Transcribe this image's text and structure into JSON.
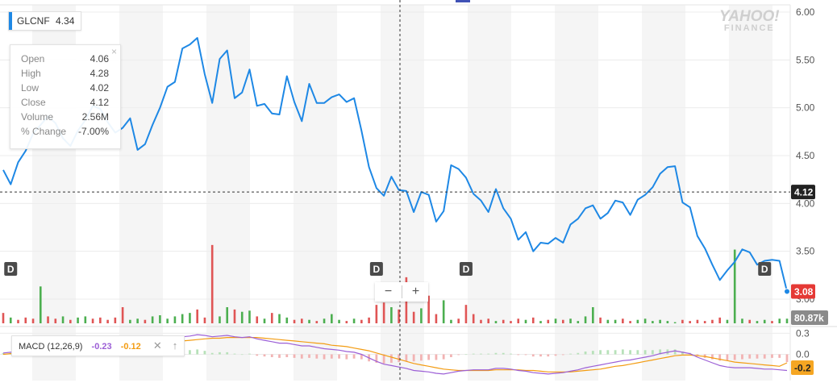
{
  "ticker": {
    "symbol": "GLCNF",
    "price": "4.34"
  },
  "logo": {
    "line1": "YAHOO!",
    "line2": "FINANCE"
  },
  "ohlc": {
    "rows": [
      {
        "label": "Open",
        "value": "4.06"
      },
      {
        "label": "High",
        "value": "4.28"
      },
      {
        "label": "Low",
        "value": "4.02"
      },
      {
        "label": "Close",
        "value": "4.12"
      },
      {
        "label": "Volume",
        "value": "2.56M"
      },
      {
        "label": "% Change",
        "value": "-7.00%"
      }
    ],
    "close_icon": "×"
  },
  "crosshair": {
    "value_label": "4.12"
  },
  "last_price_label": "3.08",
  "volume_label": "80.87k",
  "dividend_marker": "D",
  "zoom": {
    "minus": "−",
    "plus": "+"
  },
  "macd": {
    "label": "MACD (12,26,9)",
    "macd_value": "-0.23",
    "signal_value": "-0.12",
    "close_icon": "✕",
    "up_icon": "↑",
    "last_label": "-0.2"
  },
  "colors": {
    "price_line": "#1e88e5",
    "vol_up": "#4caf50",
    "vol_down": "#e05555",
    "macd_line": "#9c5fd6",
    "signal_line": "#f39c12",
    "last_badge": "#e53935",
    "crosshair_badge": "#222222",
    "volume_badge": "#8a8a8a",
    "macd_badge": "#f5a623"
  },
  "chart_data": [
    {
      "type": "line",
      "title": "GLCNF",
      "ylim": [
        3.0,
        6.0
      ],
      "y_ticks": [
        "6.00",
        "5.50",
        "5.00",
        "4.50",
        "4.00",
        "3.50",
        "3.00"
      ],
      "y_tick_values": [
        6.0,
        5.5,
        5.0,
        4.5,
        4.0,
        3.5,
        3.0
      ],
      "series": [
        {
          "name": "GLCNF",
          "values": [
            4.35,
            4.2,
            4.43,
            4.55,
            4.73,
            4.82,
            4.91,
            4.84,
            4.68,
            4.6,
            4.76,
            4.87,
            5.02,
            4.99,
            4.85,
            4.74,
            4.79,
            4.89,
            4.56,
            4.62,
            4.82,
            5.0,
            5.22,
            5.27,
            5.62,
            5.66,
            5.73,
            5.35,
            5.05,
            5.51,
            5.6,
            5.1,
            5.16,
            5.4,
            5.02,
            5.04,
            4.94,
            4.93,
            5.33,
            5.06,
            4.86,
            5.25,
            5.05,
            5.05,
            5.11,
            5.14,
            5.06,
            5.1,
            4.76,
            4.38,
            4.16,
            4.08,
            4.28,
            4.14,
            4.13,
            3.91,
            4.12,
            4.09,
            3.81,
            3.92,
            4.4,
            4.36,
            4.27,
            4.1,
            4.03,
            3.91,
            4.15,
            3.95,
            3.84,
            3.62,
            3.7,
            3.5,
            3.59,
            3.58,
            3.64,
            3.59,
            3.78,
            3.84,
            3.95,
            3.98,
            3.84,
            3.9,
            4.03,
            4.01,
            3.88,
            4.04,
            4.09,
            4.17,
            4.31,
            4.38,
            4.39,
            4.01,
            3.96,
            3.66,
            3.53,
            3.36,
            3.2,
            3.3,
            3.39,
            3.52,
            3.49,
            3.36,
            3.4,
            3.41,
            3.4,
            3.08
          ]
        }
      ],
      "dividend_marker_indices": [
        1,
        50,
        62,
        102
      ]
    },
    {
      "type": "bar",
      "title": "Volume",
      "series": [
        {
          "name": "Volume",
          "values": [
            0.9,
            0.5,
            0.3,
            0.5,
            0.4,
            3.2,
            0.6,
            0.4,
            0.6,
            0.3,
            0.5,
            0.6,
            0.4,
            0.5,
            0.3,
            0.5,
            1.4,
            0.3,
            0.4,
            0.3,
            0.6,
            0.7,
            0.4,
            0.6,
            0.8,
            0.9,
            1.2,
            0.5,
            6.8,
            0.6,
            1.4,
            1.2,
            1.0,
            1.1,
            0.6,
            0.4,
            0.9,
            0.8,
            0.5,
            0.3,
            0.4,
            0.3,
            0.2,
            0.4,
            0.8,
            0.3,
            0.2,
            0.4,
            0.3,
            0.5,
            1.6,
            1.8,
            1.4,
            1.2,
            4.0,
            1.0,
            1.3,
            2.4,
            0.8,
            2.0,
            0.3,
            0.4,
            1.6,
            0.8,
            0.3,
            0.4,
            0.2,
            0.3,
            0.2,
            0.4,
            0.3,
            0.5,
            0.2,
            0.3,
            0.4,
            0.3,
            0.4,
            0.2,
            0.6,
            1.4,
            0.5,
            0.3,
            0.3,
            0.4,
            0.2,
            0.3,
            0.4,
            0.2,
            0.3,
            0.2,
            0.1,
            0.3,
            0.2,
            0.3,
            0.2,
            0.3,
            0.5,
            0.3,
            6.4,
            0.4,
            0.3,
            0.2,
            0.3,
            0.2,
            0.4,
            0.4
          ]
        }
      ],
      "directions": [
        "d",
        "u",
        "d",
        "d",
        "d",
        "u",
        "d",
        "d",
        "u",
        "d",
        "u",
        "u",
        "d",
        "d",
        "d",
        "d",
        "d",
        "u",
        "u",
        "d",
        "u",
        "u",
        "u",
        "u",
        "u",
        "u",
        "d",
        "d",
        "d",
        "u",
        "u",
        "d",
        "u",
        "u",
        "d",
        "u",
        "d",
        "u",
        "u",
        "d",
        "d",
        "u",
        "d",
        "u",
        "u",
        "u",
        "d",
        "u",
        "d",
        "d",
        "d",
        "d",
        "u",
        "d",
        "d",
        "d",
        "u",
        "d",
        "d",
        "u",
        "u",
        "d",
        "d",
        "d",
        "d",
        "d",
        "u",
        "d",
        "d",
        "d",
        "u",
        "d",
        "u",
        "d",
        "u",
        "d",
        "u",
        "u",
        "u",
        "u",
        "d",
        "u",
        "u",
        "d",
        "d",
        "u",
        "u",
        "u",
        "u",
        "u",
        "u",
        "d",
        "d",
        "d",
        "d",
        "d",
        "d",
        "u",
        "u",
        "u",
        "d",
        "u",
        "u",
        "d",
        "u",
        "u"
      ]
    },
    {
      "type": "line",
      "title": "MACD (12,26,9)",
      "ylim": [
        -0.35,
        0.35
      ],
      "y_ticks": [
        "0.3",
        "0.0"
      ],
      "y_tick_values": [
        0.3,
        0.0
      ],
      "series": [
        {
          "name": "MACD",
          "values": [
            0.02,
            0.03,
            0.05,
            0.07,
            0.09,
            0.11,
            0.13,
            0.14,
            0.15,
            0.15,
            0.16,
            0.17,
            0.18,
            0.19,
            0.19,
            0.18,
            0.18,
            0.17,
            0.16,
            0.16,
            0.17,
            0.19,
            0.21,
            0.23,
            0.25,
            0.26,
            0.28,
            0.27,
            0.25,
            0.26,
            0.27,
            0.25,
            0.24,
            0.25,
            0.22,
            0.2,
            0.18,
            0.16,
            0.16,
            0.14,
            0.12,
            0.12,
            0.1,
            0.08,
            0.07,
            0.06,
            0.04,
            0.03,
            0.0,
            -0.05,
            -0.1,
            -0.14,
            -0.16,
            -0.18,
            -0.2,
            -0.23,
            -0.24,
            -0.25,
            -0.27,
            -0.28,
            -0.26,
            -0.24,
            -0.23,
            -0.22,
            -0.22,
            -0.22,
            -0.2,
            -0.2,
            -0.21,
            -0.23,
            -0.24,
            -0.26,
            -0.27,
            -0.28,
            -0.27,
            -0.26,
            -0.24,
            -0.22,
            -0.19,
            -0.17,
            -0.15,
            -0.13,
            -0.11,
            -0.09,
            -0.08,
            -0.06,
            -0.04,
            -0.02,
            0.01,
            0.03,
            0.05,
            0.03,
            0.01,
            -0.04,
            -0.08,
            -0.12,
            -0.16,
            -0.18,
            -0.19,
            -0.19,
            -0.19,
            -0.2,
            -0.21,
            -0.21,
            -0.22,
            -0.23
          ]
        },
        {
          "name": "Signal",
          "values": [
            0.0,
            0.01,
            0.02,
            0.03,
            0.04,
            0.05,
            0.07,
            0.08,
            0.09,
            0.1,
            0.11,
            0.12,
            0.13,
            0.14,
            0.15,
            0.15,
            0.16,
            0.16,
            0.16,
            0.16,
            0.16,
            0.16,
            0.17,
            0.18,
            0.19,
            0.2,
            0.21,
            0.22,
            0.23,
            0.23,
            0.24,
            0.24,
            0.24,
            0.24,
            0.24,
            0.23,
            0.22,
            0.21,
            0.2,
            0.19,
            0.18,
            0.17,
            0.16,
            0.15,
            0.13,
            0.12,
            0.11,
            0.09,
            0.07,
            0.05,
            0.02,
            -0.01,
            -0.04,
            -0.07,
            -0.1,
            -0.13,
            -0.15,
            -0.17,
            -0.19,
            -0.21,
            -0.22,
            -0.23,
            -0.23,
            -0.23,
            -0.23,
            -0.23,
            -0.22,
            -0.22,
            -0.22,
            -0.22,
            -0.23,
            -0.23,
            -0.24,
            -0.25,
            -0.25,
            -0.25,
            -0.25,
            -0.24,
            -0.23,
            -0.22,
            -0.21,
            -0.19,
            -0.17,
            -0.16,
            -0.14,
            -0.12,
            -0.1,
            -0.08,
            -0.06,
            -0.04,
            -0.02,
            -0.01,
            -0.01,
            -0.02,
            -0.03,
            -0.05,
            -0.07,
            -0.09,
            -0.11,
            -0.12,
            -0.13,
            -0.14,
            -0.15,
            -0.16,
            -0.17,
            -0.12
          ]
        }
      ]
    }
  ]
}
